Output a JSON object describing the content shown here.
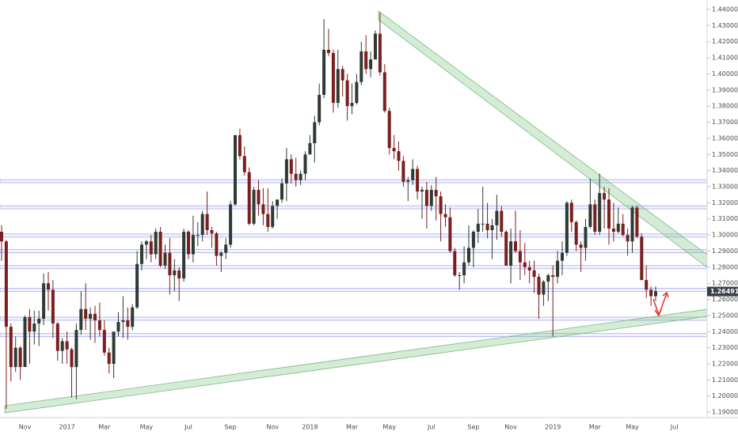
{
  "chart_data": {
    "type": "candlestick",
    "categories": [
      null,
      null,
      null,
      null,
      null,
      "Nov",
      null,
      null,
      null,
      null,
      null,
      null,
      null,
      null,
      "2017",
      null,
      null,
      null,
      null,
      null,
      null,
      null,
      "Mar",
      null,
      null,
      null,
      null,
      null,
      null,
      null,
      null,
      "May",
      null,
      null,
      null,
      null,
      null,
      null,
      null,
      null,
      "Jul",
      null,
      null,
      null,
      null,
      null,
      null,
      null,
      null,
      "Sep",
      null,
      null,
      null,
      null,
      null,
      null,
      null,
      null,
      "Nov",
      null,
      null,
      null,
      null,
      null,
      null,
      null,
      "2018",
      null,
      null,
      null,
      null,
      null,
      null,
      null,
      null,
      "Mar",
      null,
      null,
      null,
      null,
      null,
      null,
      null,
      "May",
      null,
      null,
      null,
      null,
      null,
      null,
      null,
      null,
      "Jul",
      null,
      null,
      null,
      null,
      null,
      null,
      null,
      null,
      "Sep",
      null,
      null,
      null,
      null,
      null,
      null,
      null,
      "Nov",
      null,
      null,
      null,
      null,
      null,
      null,
      null,
      null,
      "2019",
      null,
      null,
      null,
      null,
      null,
      null,
      null,
      null,
      "Mar",
      null,
      null,
      null,
      null,
      null,
      null,
      null,
      "May",
      null,
      null,
      null,
      null,
      null,
      null,
      null,
      null,
      "Jul",
      null
    ],
    "open": [
      1.302,
      1.296,
      1.243,
      1.218,
      1.23,
      1.218,
      1.249,
      1.24,
      1.245,
      1.248,
      1.27,
      1.266,
      1.245,
      1.228,
      1.234,
      1.229,
      1.218,
      1.241,
      1.254,
      1.248,
      1.251,
      1.247,
      1.241,
      1.227,
      1.22,
      1.24,
      1.246,
      1.247,
      1.243,
      1.255,
      1.282,
      1.294,
      1.296,
      1.288,
      1.302,
      1.281,
      1.289,
      1.275,
      1.278,
      1.273,
      1.302,
      1.288,
      1.3,
      1.3,
      1.313,
      1.303,
      1.301,
      1.287,
      1.289,
      1.294,
      1.319,
      1.362,
      1.349,
      1.339,
      1.307,
      1.328,
      1.319,
      1.313,
      1.305,
      1.318,
      1.322,
      1.332,
      1.347,
      1.338,
      1.334,
      1.338,
      1.35,
      1.357,
      1.37,
      1.387,
      1.415,
      1.413,
      1.382,
      1.403,
      1.396,
      1.38,
      1.382,
      1.395,
      1.414,
      1.403,
      1.409,
      1.425,
      1.401,
      1.377,
      1.354,
      1.352,
      1.346,
      1.333,
      1.334,
      1.341,
      1.327,
      1.328,
      1.318,
      1.328,
      1.324,
      1.313,
      1.311,
      1.29,
      1.275,
      1.275,
      1.283,
      1.292,
      1.302,
      1.307,
      1.307,
      1.303,
      1.306,
      1.315,
      1.302,
      1.281,
      1.296,
      1.29,
      1.283,
      1.28,
      1.278,
      1.274,
      1.263,
      1.271,
      1.275,
      1.274,
      1.284,
      1.289,
      1.32,
      1.308,
      1.294,
      1.292,
      1.305,
      1.319,
      1.302,
      1.326,
      1.322,
      1.304,
      1.302,
      1.307,
      1.3,
      1.296,
      1.317,
      1.299,
      1.272,
      1.266,
      1.262,
      null,
      null,
      null,
      null,
      null
    ],
    "high": [
      1.306,
      1.297,
      1.245,
      1.237,
      1.231,
      1.25,
      1.254,
      1.253,
      1.253,
      1.276,
      1.277,
      1.272,
      1.246,
      1.236,
      1.24,
      1.23,
      1.245,
      1.265,
      1.27,
      1.255,
      1.256,
      1.258,
      1.247,
      1.23,
      1.24,
      1.252,
      1.262,
      1.255,
      1.257,
      1.29,
      1.296,
      1.297,
      1.3,
      1.304,
      1.305,
      1.294,
      1.298,
      1.285,
      1.28,
      1.304,
      1.303,
      1.312,
      1.308,
      1.315,
      1.327,
      1.305,
      1.302,
      1.29,
      1.298,
      1.321,
      1.362,
      1.366,
      1.355,
      1.342,
      1.33,
      1.334,
      1.329,
      1.329,
      1.321,
      1.322,
      1.335,
      1.354,
      1.35,
      1.348,
      1.34,
      1.352,
      1.362,
      1.374,
      1.394,
      1.434,
      1.428,
      1.415,
      1.415,
      1.405,
      1.4,
      1.394,
      1.4,
      1.42,
      1.424,
      1.414,
      1.427,
      1.438,
      1.406,
      1.379,
      1.362,
      1.358,
      1.349,
      1.336,
      1.347,
      1.343,
      1.33,
      1.333,
      1.331,
      1.336,
      1.327,
      1.319,
      1.317,
      1.292,
      1.277,
      1.293,
      1.306,
      1.303,
      1.316,
      1.33,
      1.32,
      1.31,
      1.325,
      1.318,
      1.303,
      1.304,
      1.315,
      1.303,
      1.295,
      1.284,
      1.284,
      1.276,
      1.272,
      1.276,
      1.281,
      1.29,
      1.296,
      1.321,
      1.322,
      1.309,
      1.296,
      1.31,
      1.335,
      1.322,
      1.338,
      1.33,
      1.329,
      1.32,
      1.317,
      1.313,
      1.304,
      1.318,
      1.318,
      1.301,
      1.281,
      1.268,
      1.268,
      null,
      null,
      null,
      null,
      null
    ],
    "low": [
      1.284,
      1.192,
      1.209,
      1.215,
      1.21,
      1.218,
      1.22,
      1.232,
      1.231,
      1.244,
      1.253,
      1.236,
      1.222,
      1.22,
      1.22,
      1.199,
      1.198,
      1.238,
      1.241,
      1.235,
      1.233,
      1.237,
      1.225,
      1.214,
      1.211,
      1.237,
      1.236,
      1.235,
      1.241,
      1.254,
      1.278,
      1.285,
      1.283,
      1.285,
      1.28,
      1.279,
      1.263,
      1.265,
      1.259,
      1.271,
      1.285,
      1.283,
      1.293,
      1.296,
      1.3,
      1.292,
      1.281,
      1.277,
      1.285,
      1.292,
      1.318,
      1.347,
      1.337,
      1.306,
      1.306,
      1.312,
      1.306,
      1.302,
      1.304,
      1.31,
      1.32,
      1.321,
      1.332,
      1.33,
      1.331,
      1.334,
      1.35,
      1.345,
      1.368,
      1.385,
      1.411,
      1.376,
      1.379,
      1.386,
      1.371,
      1.375,
      1.381,
      1.393,
      1.4,
      1.398,
      1.409,
      1.399,
      1.376,
      1.35,
      1.347,
      1.34,
      1.33,
      1.321,
      1.331,
      1.322,
      1.31,
      1.304,
      1.315,
      1.309,
      1.296,
      1.305,
      1.289,
      1.274,
      1.266,
      1.27,
      1.281,
      1.28,
      1.295,
      1.302,
      1.298,
      1.285,
      1.297,
      1.299,
      1.281,
      1.27,
      1.289,
      1.272,
      1.275,
      1.27,
      1.264,
      1.248,
      1.256,
      1.259,
      1.237,
      1.27,
      1.275,
      1.287,
      1.302,
      1.29,
      1.277,
      1.284,
      1.304,
      1.3,
      1.3,
      1.304,
      1.294,
      1.296,
      1.301,
      1.299,
      1.287,
      1.289,
      1.298,
      1.272,
      1.261,
      1.256,
      1.259,
      null,
      null,
      null,
      null,
      null
    ],
    "close": [
      1.296,
      1.243,
      1.218,
      1.23,
      1.218,
      1.249,
      1.24,
      1.245,
      1.248,
      1.27,
      1.266,
      1.245,
      1.228,
      1.234,
      1.229,
      1.218,
      1.241,
      1.254,
      1.248,
      1.251,
      1.247,
      1.241,
      1.227,
      1.22,
      1.24,
      1.246,
      1.247,
      1.243,
      1.255,
      1.282,
      1.294,
      1.296,
      1.288,
      1.302,
      1.281,
      1.289,
      1.275,
      1.278,
      1.273,
      1.302,
      1.288,
      1.3,
      1.3,
      1.313,
      1.303,
      1.301,
      1.287,
      1.289,
      1.294,
      1.319,
      1.362,
      1.349,
      1.339,
      1.307,
      1.328,
      1.319,
      1.313,
      1.305,
      1.318,
      1.322,
      1.332,
      1.347,
      1.338,
      1.334,
      1.338,
      1.35,
      1.357,
      1.37,
      1.387,
      1.415,
      1.413,
      1.382,
      1.403,
      1.396,
      1.38,
      1.382,
      1.395,
      1.414,
      1.403,
      1.409,
      1.425,
      1.401,
      1.377,
      1.354,
      1.352,
      1.346,
      1.333,
      1.334,
      1.341,
      1.327,
      1.328,
      1.318,
      1.328,
      1.324,
      1.313,
      1.311,
      1.29,
      1.275,
      1.275,
      1.283,
      1.292,
      1.302,
      1.307,
      1.307,
      1.303,
      1.306,
      1.315,
      1.302,
      1.281,
      1.296,
      1.29,
      1.283,
      1.28,
      1.278,
      1.274,
      1.263,
      1.271,
      1.275,
      1.274,
      1.284,
      1.289,
      1.32,
      1.308,
      1.294,
      1.292,
      1.305,
      1.319,
      1.302,
      1.326,
      1.322,
      1.304,
      1.302,
      1.307,
      1.3,
      1.296,
      1.317,
      1.299,
      1.272,
      1.266,
      1.262,
      1.265,
      null,
      null,
      null,
      null,
      null
    ],
    "up_color": "#2f3a33",
    "down_color": "#7a1e1e",
    "ylim": [
      1.1866,
      1.4459
    ],
    "yticks": [
      {
        "value": 1.19,
        "label": "1.19000"
      },
      {
        "value": 1.2,
        "label": "1.20000"
      },
      {
        "value": 1.21,
        "label": "1.21000"
      },
      {
        "value": 1.22,
        "label": "1.22000"
      },
      {
        "value": 1.23,
        "label": "1.23000"
      },
      {
        "value": 1.24,
        "label": "1.24000"
      },
      {
        "value": 1.25,
        "label": "1.25000"
      },
      {
        "value": 1.26,
        "label": "1.26000"
      },
      {
        "value": 1.27,
        "label": "1.27000"
      },
      {
        "value": 1.28,
        "label": "1.28000"
      },
      {
        "value": 1.29,
        "label": "1.29000"
      },
      {
        "value": 1.3,
        "label": "1.30000"
      },
      {
        "value": 1.31,
        "label": "1.31000"
      },
      {
        "value": 1.32,
        "label": "1.32000"
      },
      {
        "value": 1.33,
        "label": "1.33000"
      },
      {
        "value": 1.34,
        "label": "1.34000"
      },
      {
        "value": 1.35,
        "label": "1.35000"
      },
      {
        "value": 1.36,
        "label": "1.36000"
      },
      {
        "value": 1.37,
        "label": "1.37000"
      },
      {
        "value": 1.38,
        "label": "1.38000"
      },
      {
        "value": 1.39,
        "label": "1.39000"
      },
      {
        "value": 1.4,
        "label": "1.40000"
      },
      {
        "value": 1.41,
        "label": "1.41000"
      },
      {
        "value": 1.42,
        "label": "1.42000"
      },
      {
        "value": 1.43,
        "label": "1.43000"
      },
      {
        "value": 1.44,
        "label": "1.44000"
      }
    ],
    "levels": [
      1.3334,
      1.3172,
      1.2996,
      1.2899,
      1.28,
      1.266,
      1.248,
      1.2378
    ],
    "level_color": "#8f95f0",
    "last_price": 1.26491,
    "last_price_color": "#3a3f44"
  }
}
